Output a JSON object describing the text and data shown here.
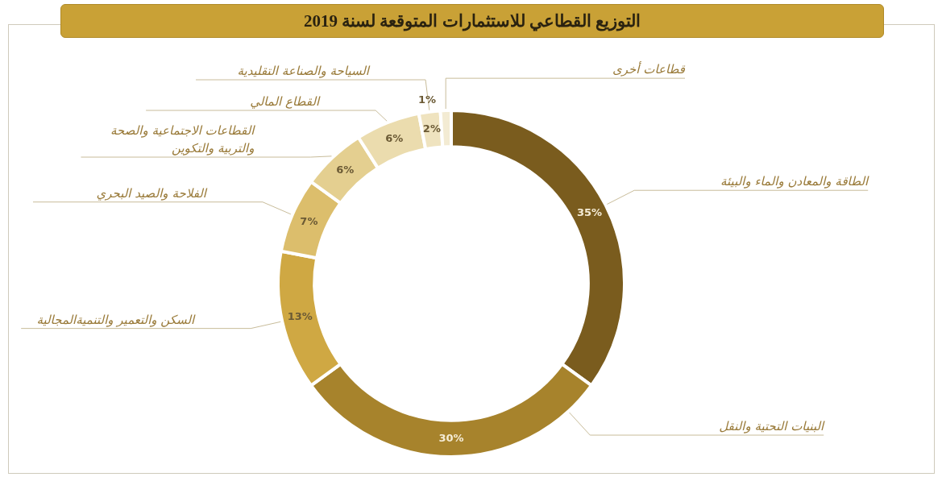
{
  "chart_data": {
    "type": "donut",
    "title": "التوزيع القطاعي للاستثمارات المتوقعة لسنة 2019",
    "categories": [
      "الطاقة والمعادن والماء والبيئة",
      "البنيات التحتية والنقل",
      "السكن والتعمير والتنميةالمجالية",
      "الفلاحة والصيد البحري",
      "القطاعات الاجتماعية والصحة\nوالتربية والتكوين",
      "القطاع المالي",
      "السياحة والصناعة التقليدية",
      "قطاعات أخرى"
    ],
    "values": [
      35,
      30,
      13,
      7,
      6,
      6,
      2,
      1
    ],
    "colors": [
      "#7a5c1e",
      "#a7832c",
      "#cfa843",
      "#dcbe6c",
      "#e4cf90",
      "#ebdcae",
      "#efe3bf",
      "#f3ebd3"
    ],
    "value_labels": [
      "35%",
      "30%",
      "13%",
      "7%",
      "6%",
      "6%",
      "2%",
      "1%"
    ]
  }
}
